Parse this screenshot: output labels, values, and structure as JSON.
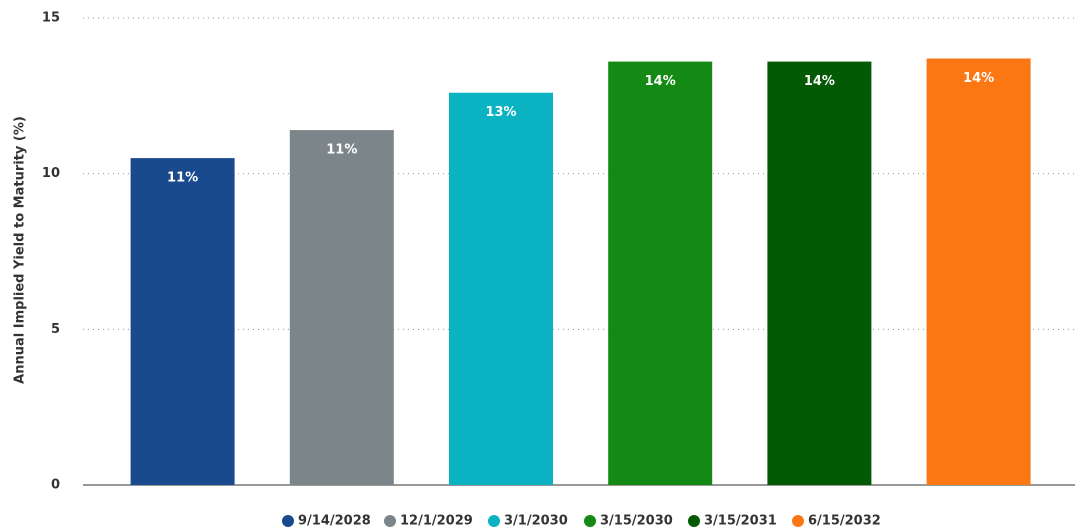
{
  "chart_data": {
    "type": "bar",
    "y_label": "Annual Implied Yield to Maturity (%)",
    "ylim": [
      0,
      15
    ],
    "yticks": [
      0,
      5,
      10,
      15
    ],
    "grid": true,
    "series": [
      {
        "name": "9/14/2028",
        "color": "#1a4a8e",
        "values": [
          10.5
        ],
        "value_labels": [
          "11%"
        ]
      },
      {
        "name": "12/1/2029",
        "color": "#7c8589",
        "values": [
          11.4
        ],
        "value_labels": [
          "11%"
        ]
      },
      {
        "name": "3/1/2030",
        "color": "#0bb2c2",
        "values": [
          12.6
        ],
        "value_labels": [
          "13%"
        ]
      },
      {
        "name": "3/15/2030",
        "color": "#148a14",
        "values": [
          13.6
        ],
        "value_labels": [
          "14%"
        ]
      },
      {
        "name": "3/15/2031",
        "color": "#045a04",
        "values": [
          13.6
        ],
        "value_labels": [
          "14%"
        ]
      },
      {
        "name": "6/15/2032",
        "color": "#fb7714",
        "values": [
          13.7
        ],
        "value_labels": [
          "14%"
        ]
      }
    ]
  }
}
